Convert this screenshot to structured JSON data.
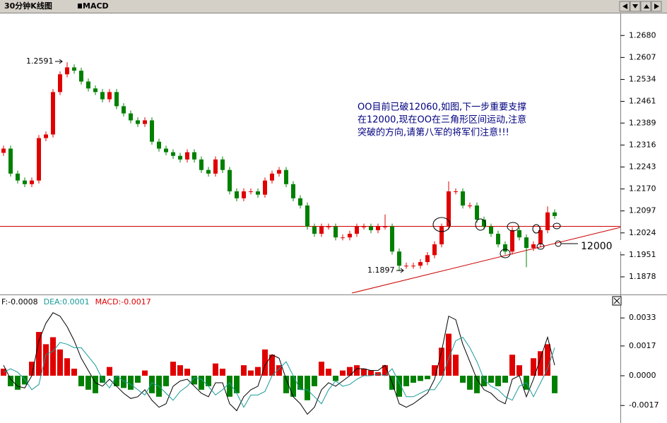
{
  "header": {
    "title": "30分钟K线图",
    "indicator": "MACD"
  },
  "chart_data": [
    {
      "type": "candlestick",
      "up_color": "#e00000",
      "down_color": "#008000",
      "ylim": [
        1.1824,
        1.2751
      ],
      "yticks": [
        {
          "value": 1.1878,
          "label": "1.1878"
        },
        {
          "value": 1.1951,
          "label": "1.1951"
        },
        {
          "value": 1.2024,
          "label": "1.2024"
        },
        {
          "value": 1.2097,
          "label": "1.2097"
        },
        {
          "value": 1.217,
          "label": "1.2170"
        },
        {
          "value": 1.2243,
          "label": "1.2243"
        },
        {
          "value": 1.2316,
          "label": "1.2316"
        },
        {
          "value": 1.2389,
          "label": "1.2389"
        },
        {
          "value": 1.2461,
          "label": "1.2461"
        },
        {
          "value": 1.2534,
          "label": "1.2534"
        },
        {
          "value": 1.2607,
          "label": "1.2607"
        },
        {
          "value": 1.268,
          "label": "1.2680"
        }
      ],
      "open": [
        1.229,
        1.2304,
        1.2221,
        1.2198,
        1.2186,
        1.2198,
        1.2339,
        1.2351,
        1.2492,
        1.2551,
        1.2574,
        1.2563,
        1.2527,
        1.2504,
        1.2492,
        1.2468,
        1.2492,
        1.2445,
        1.2421,
        1.2398,
        1.2386,
        1.2398,
        1.2327,
        1.2304,
        1.2292,
        1.228,
        1.2268,
        1.2292,
        1.2268,
        1.2233,
        1.2221,
        1.2268,
        1.2233,
        1.2162,
        1.2139,
        1.2162,
        1.2162,
        1.2151,
        1.2198,
        1.2221,
        1.2233,
        1.2186,
        1.2139,
        1.2115,
        1.2045,
        1.2021,
        1.2045,
        1.2045,
        1.2009,
        1.2009,
        1.2021,
        1.2045,
        1.2045,
        1.2033,
        1.2045,
        1.2045,
        1.1962,
        1.1915,
        1.1915,
        1.1915,
        1.1927,
        1.195,
        1.1986,
        1.2045,
        1.2162,
        1.2162,
        1.2115,
        1.2115,
        1.2068,
        1.2045,
        1.2021,
        1.1986,
        1.1962,
        1.2033,
        1.2009,
        1.1974,
        1.1986,
        1.2033,
        1.2092
      ],
      "high": [
        1.2314,
        1.2314,
        1.2231,
        1.2208,
        1.2208,
        1.2349,
        1.2361,
        1.2502,
        1.2561,
        1.2591,
        1.2584,
        1.2573,
        1.2537,
        1.2514,
        1.2502,
        1.2502,
        1.2502,
        1.2455,
        1.2431,
        1.2408,
        1.2408,
        1.2408,
        1.2337,
        1.2314,
        1.2302,
        1.229,
        1.2302,
        1.2302,
        1.2278,
        1.2243,
        1.2278,
        1.2278,
        1.2243,
        1.2172,
        1.2172,
        1.2172,
        1.2172,
        1.2208,
        1.2231,
        1.2243,
        1.2243,
        1.2196,
        1.2149,
        1.2125,
        1.2055,
        1.2055,
        1.2055,
        1.2055,
        1.2019,
        1.2031,
        1.2055,
        1.2055,
        1.2055,
        1.2055,
        1.2085,
        1.2055,
        1.1972,
        1.1925,
        1.1925,
        1.1937,
        1.196,
        1.1996,
        1.2055,
        1.2195,
        1.2172,
        1.2172,
        1.2125,
        1.2125,
        1.2078,
        1.2055,
        1.2031,
        1.1996,
        1.2043,
        1.2043,
        1.2019,
        1.1996,
        1.2043,
        1.2112,
        1.2102
      ],
      "low": [
        1.228,
        1.2211,
        1.2188,
        1.2176,
        1.2176,
        1.2188,
        1.2329,
        1.2341,
        1.2482,
        1.2541,
        1.2553,
        1.2517,
        1.2494,
        1.2482,
        1.2458,
        1.2458,
        1.2435,
        1.2411,
        1.2388,
        1.2376,
        1.2376,
        1.2317,
        1.2294,
        1.2282,
        1.227,
        1.2258,
        1.2258,
        1.2258,
        1.2223,
        1.2211,
        1.2211,
        1.2223,
        1.2152,
        1.2129,
        1.2129,
        1.2152,
        1.2141,
        1.2141,
        1.2188,
        1.2211,
        1.2176,
        1.2129,
        1.2105,
        1.2035,
        1.2011,
        1.2011,
        1.2035,
        1.1999,
        1.1999,
        1.1999,
        1.2011,
        1.2035,
        1.2023,
        1.2023,
        1.2035,
        1.1952,
        1.1897,
        1.1905,
        1.1905,
        1.1905,
        1.1917,
        1.194,
        1.1976,
        1.2035,
        1.2152,
        1.2105,
        1.2105,
        1.2058,
        1.2035,
        1.2011,
        1.1976,
        1.1952,
        1.1952,
        1.1999,
        1.191,
        1.1964,
        1.1976,
        1.2023,
        1.207
      ],
      "close": [
        1.2304,
        1.2221,
        1.2198,
        1.2186,
        1.2198,
        1.2339,
        1.2351,
        1.2492,
        1.2551,
        1.2574,
        1.2563,
        1.2527,
        1.2504,
        1.2492,
        1.2468,
        1.2492,
        1.2445,
        1.2421,
        1.2398,
        1.2386,
        1.2398,
        1.2327,
        1.2304,
        1.2292,
        1.228,
        1.2268,
        1.2292,
        1.2268,
        1.2233,
        1.2221,
        1.2268,
        1.2233,
        1.2162,
        1.2139,
        1.2162,
        1.2162,
        1.2151,
        1.2198,
        1.2221,
        1.2233,
        1.2186,
        1.2139,
        1.2115,
        1.2045,
        1.2021,
        1.2045,
        1.2045,
        1.2009,
        1.2009,
        1.2021,
        1.2045,
        1.2045,
        1.2033,
        1.2045,
        1.2045,
        1.1962,
        1.1915,
        1.1915,
        1.1915,
        1.1927,
        1.195,
        1.1986,
        1.2045,
        1.2162,
        1.2162,
        1.2115,
        1.2115,
        1.2068,
        1.2045,
        1.2021,
        1.1986,
        1.1962,
        1.2033,
        1.2009,
        1.1974,
        1.1986,
        1.2033,
        1.2092,
        1.208
      ],
      "note": [
        "OO目前已破12060,如图,下一步重要支撑",
        "在12000,现在OO在三角形区间运动,注意",
        "突破的方向,请第八军的将军们注意!!!"
      ],
      "support_label": "12000"
    },
    {
      "type": "macd",
      "ylim": [
        -0.0027,
        0.0046
      ],
      "yticks": [
        -0.0017,
        {
          "value": 0,
          "label": "0.0000"
        },
        0.0017,
        0.0033
      ],
      "readout": [
        {
          "text": "F:-0.0008",
          "color": "#000000"
        },
        {
          "text": "DEA:0.0001",
          "color": "#1a9a9a"
        },
        {
          "text": "MACD:-0.0017",
          "color": "#e00000"
        }
      ],
      "histogram": {
        "up_color": "#e00000",
        "down_color": "#008000",
        "values": [
          0.0004,
          -0.0006,
          -0.0008,
          -0.0005,
          0.0008,
          0.0025,
          0.0018,
          0.0022,
          0.0015,
          0.001,
          0.0004,
          -0.0006,
          -0.0008,
          -0.001,
          -0.0004,
          0.0005,
          -0.0006,
          -0.0007,
          -0.0008,
          -0.0004,
          0.0003,
          -0.001,
          -0.0012,
          -0.0006,
          0.0008,
          0.0006,
          0.0004,
          -0.0005,
          -0.0008,
          -0.0006,
          0.0007,
          0.0004,
          -0.0012,
          -0.001,
          0.0006,
          0.0003,
          0.0005,
          0.0015,
          0.0012,
          0.0006,
          -0.001,
          -0.0012,
          -0.0008,
          -0.0014,
          -0.0006,
          0.0008,
          0.0004,
          -0.0003,
          0.0003,
          0.0005,
          0.0006,
          0.0004,
          0.0003,
          0.0002,
          0.0006,
          -0.0008,
          -0.0012,
          -0.0006,
          -0.0004,
          -0.0003,
          -0.0002,
          0.0006,
          0.0016,
          0.0024,
          0.0012,
          -0.0004,
          -0.0008,
          -0.001,
          -0.0006,
          -0.0004,
          -0.0006,
          -0.0004,
          0.0012,
          0.0006,
          -0.0008,
          0.001,
          0.0014,
          0.0018,
          -0.001
        ]
      },
      "series": [
        {
          "color": "#000000",
          "values": [
            0.0006,
            -0.0002,
            -0.0006,
            -0.0007,
            0.0,
            0.002,
            0.003,
            0.0036,
            0.0034,
            0.0028,
            0.002,
            0.001,
            0.0003,
            -0.0004,
            -0.0006,
            -0.0002,
            -0.0006,
            -0.001,
            -0.0013,
            -0.0012,
            -0.0008,
            -0.0014,
            -0.0018,
            -0.0016,
            -0.0006,
            -0.0003,
            -0.0002,
            -0.0006,
            -0.001,
            -0.0012,
            -0.0004,
            -0.0004,
            -0.0016,
            -0.002,
            -0.0012,
            -0.0008,
            -0.0006,
            0.0006,
            0.0012,
            0.001,
            -0.0002,
            -0.0012,
            -0.0016,
            -0.0022,
            -0.0018,
            -0.0008,
            -0.0004,
            -0.0006,
            -0.0003,
            0.0,
            0.0004,
            0.0004,
            0.0003,
            0.0003,
            0.0006,
            -0.0004,
            -0.0016,
            -0.0018,
            -0.0016,
            -0.0013,
            -0.001,
            -0.0002,
            0.0014,
            0.0034,
            0.0032,
            0.0018,
            0.0008,
            -0.0002,
            -0.0008,
            -0.001,
            -0.0014,
            -0.0016,
            -0.0002,
            0.0,
            -0.0012,
            -0.0002,
            0.001,
            0.0022,
            0.0006
          ]
        },
        {
          "color": "#1a9a9a",
          "values": [
            0.0002,
            0.0004,
            0.0002,
            -0.0002,
            -0.0008,
            -0.0005,
            0.0012,
            0.0014,
            0.0019,
            0.0018,
            0.0016,
            0.0016,
            0.0011,
            0.0006,
            -0.0002,
            -0.0007,
            0.0,
            -0.0003,
            -0.0005,
            -0.0008,
            -0.0011,
            -0.0004,
            -0.0006,
            -0.001,
            -0.0014,
            -0.0009,
            -0.0006,
            -0.0001,
            -0.0002,
            -0.0006,
            -0.0011,
            -0.0008,
            -0.0004,
            -0.001,
            -0.0018,
            -0.0011,
            -0.0011,
            -0.0009,
            0.0,
            0.0004,
            0.0008,
            0.0,
            -0.0008,
            -0.0008,
            -0.0012,
            -0.0016,
            -0.0008,
            -0.0003,
            -0.0006,
            -0.0005,
            -0.0002,
            0.0,
            0.0,
            0.0001,
            0.0,
            0.0004,
            -0.0004,
            -0.0012,
            -0.0012,
            -0.001,
            -0.0008,
            -0.0008,
            -0.0002,
            0.001,
            0.002,
            0.0022,
            0.0016,
            0.0008,
            -0.0002,
            -0.0006,
            -0.0008,
            -0.0012,
            -0.0014,
            -0.0006,
            -0.0004,
            -0.0012,
            -0.0004,
            0.0004,
            0.0016
          ]
        }
      ]
    }
  ]
}
